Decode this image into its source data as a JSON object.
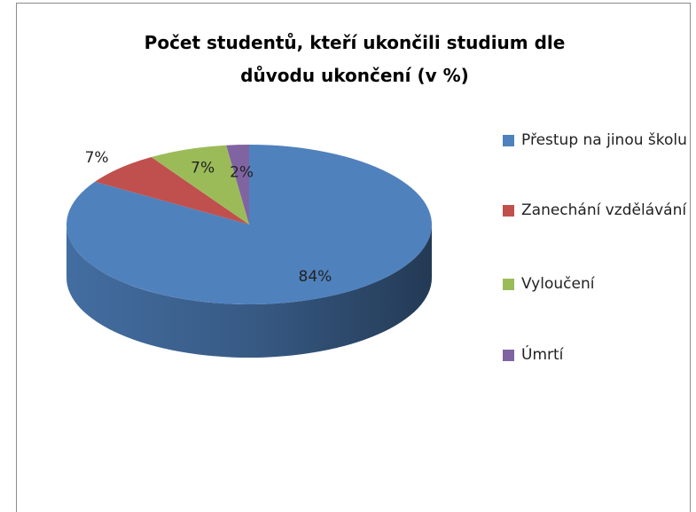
{
  "chart_data": {
    "type": "pie",
    "title": "Počet studentů, kteří ukončili studium dle důvodu ukončení (v %)",
    "categories": [
      "Přestup na jinou školu",
      "Zanechání vzdělávání",
      "Vyloučení",
      "Úmrtí"
    ],
    "values": [
      84,
      7,
      7,
      2
    ],
    "value_labels": [
      "84%",
      "7%",
      "7%",
      "2%"
    ],
    "colors": [
      "#4f81bd",
      "#c0504d",
      "#9bbb59",
      "#8064a2"
    ],
    "legend": "right"
  }
}
